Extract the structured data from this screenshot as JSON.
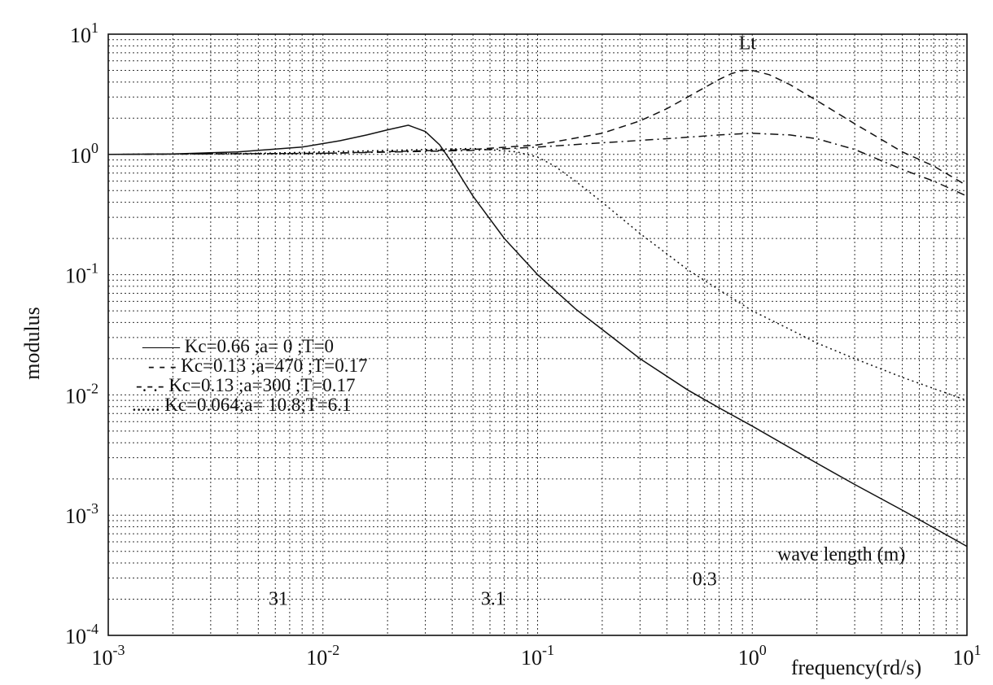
{
  "chart_data": {
    "type": "line",
    "xscale": "log",
    "yscale": "log",
    "xlim": [
      0.001,
      10
    ],
    "ylim": [
      0.0001,
      10
    ],
    "xlabel": "frequency(rd/s)",
    "ylabel": "modulus",
    "grid": true,
    "legend_position": "middle-left",
    "x_ticks": [
      {
        "value": 0.001,
        "base": "10",
        "exp": "-3"
      },
      {
        "value": 0.01,
        "base": "10",
        "exp": "-2"
      },
      {
        "value": 0.1,
        "base": "10",
        "exp": "-1"
      },
      {
        "value": 1,
        "base": "10",
        "exp": "0"
      },
      {
        "value": 10,
        "base": "10",
        "exp": "1"
      }
    ],
    "y_ticks": [
      {
        "value": 10,
        "base": "10",
        "exp": "1"
      },
      {
        "value": 1,
        "base": "10",
        "exp": "0"
      },
      {
        "value": 0.1,
        "base": "10",
        "exp": "-1"
      },
      {
        "value": 0.01,
        "base": "10",
        "exp": "-2"
      },
      {
        "value": 0.001,
        "base": "10",
        "exp": "-3"
      },
      {
        "value": 0.0001,
        "base": "10",
        "exp": "-4"
      }
    ],
    "annotations": {
      "curve_label": {
        "text": "Lt",
        "x": 0.95,
        "y": 7.5
      },
      "wavelength_title": {
        "text": "wave length (m)",
        "x": 2.6,
        "y": 0.00042
      },
      "wavelength_marks": [
        {
          "text": "31",
          "x": 0.0062,
          "y": 0.00018
        },
        {
          "text": "3.1",
          "x": 0.062,
          "y": 0.00018
        },
        {
          "text": "0.3",
          "x": 0.6,
          "y": 0.00026
        }
      ]
    },
    "series": [
      {
        "name": "Kc=0.66 ;a=  0  ;T=0",
        "legend_marker": "——",
        "style": "solid",
        "x": [
          0.001,
          0.002,
          0.004,
          0.008,
          0.012,
          0.016,
          0.02,
          0.025,
          0.03,
          0.035,
          0.04,
          0.05,
          0.07,
          0.1,
          0.15,
          0.2,
          0.3,
          0.5,
          0.7,
          1,
          2,
          3,
          5,
          10
        ],
        "y": [
          1.0,
          1.01,
          1.05,
          1.15,
          1.3,
          1.45,
          1.6,
          1.75,
          1.55,
          1.2,
          0.85,
          0.45,
          0.2,
          0.1,
          0.052,
          0.035,
          0.02,
          0.011,
          0.0078,
          0.0055,
          0.0027,
          0.0018,
          0.0011,
          0.00055
        ]
      },
      {
        "name": "Kc=0.13 ;a=470  ;T=0.17",
        "legend_marker": "- - -",
        "style": "dashed",
        "x": [
          0.001,
          0.01,
          0.05,
          0.1,
          0.2,
          0.3,
          0.4,
          0.5,
          0.6,
          0.7,
          0.8,
          0.9,
          1.0,
          1.2,
          1.5,
          2,
          3,
          5,
          7,
          10
        ],
        "y": [
          1.0,
          1.02,
          1.1,
          1.2,
          1.5,
          1.9,
          2.4,
          3.0,
          3.6,
          4.2,
          4.7,
          5.0,
          5.0,
          4.6,
          3.8,
          2.8,
          1.8,
          1.05,
          0.8,
          0.55
        ]
      },
      {
        "name": "Kc=0.13 ;a=300  ;T=0.17",
        "legend_marker": "-.-.-",
        "style": "dashdot",
        "x": [
          0.001,
          0.01,
          0.05,
          0.1,
          0.2,
          0.4,
          0.7,
          1.0,
          1.5,
          2,
          3,
          5,
          7,
          10
        ],
        "y": [
          1.0,
          1.02,
          1.08,
          1.15,
          1.25,
          1.35,
          1.45,
          1.5,
          1.45,
          1.35,
          1.1,
          0.75,
          0.6,
          0.45
        ]
      },
      {
        "name": "Kc=0.064;a= 10.8;T=6.1",
        "legend_marker": "......",
        "style": "dotted",
        "x": [
          0.001,
          0.005,
          0.01,
          0.02,
          0.05,
          0.08,
          0.1,
          0.12,
          0.15,
          0.2,
          0.3,
          0.5,
          0.7,
          1,
          1.5,
          2,
          3,
          5,
          10
        ],
        "y": [
          1.0,
          1.02,
          1.05,
          1.08,
          1.12,
          1.05,
          0.95,
          0.8,
          0.6,
          0.4,
          0.22,
          0.11,
          0.075,
          0.05,
          0.035,
          0.027,
          0.02,
          0.014,
          0.009
        ]
      }
    ]
  }
}
